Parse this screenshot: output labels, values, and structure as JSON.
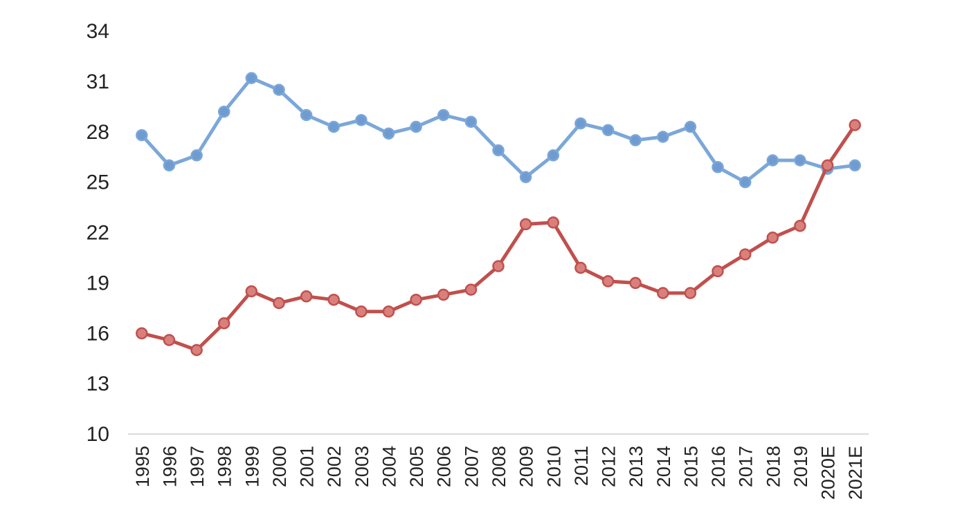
{
  "chart_data": {
    "type": "line",
    "categories": [
      "1995",
      "1996",
      "1997",
      "1998",
      "1999",
      "2000",
      "2001",
      "2002",
      "2003",
      "2004",
      "2005",
      "2006",
      "2007",
      "2008",
      "2009",
      "2010",
      "2011",
      "2012",
      "2013",
      "2014",
      "2015",
      "2016",
      "2017",
      "2018",
      "2019",
      "2020E",
      "2021E"
    ],
    "series": [
      {
        "color": "#7ba7d9",
        "marker_color": "#6f9bd0",
        "values": [
          27.8,
          26.0,
          26.6,
          29.2,
          31.2,
          30.5,
          29.0,
          28.3,
          28.7,
          27.9,
          28.3,
          29.0,
          28.6,
          26.9,
          25.3,
          26.6,
          28.5,
          28.1,
          27.5,
          27.7,
          28.3,
          25.9,
          25.0,
          26.3,
          26.3,
          25.8,
          26.0
        ]
      },
      {
        "color": "#c0504d",
        "marker_color": "#d9807d",
        "values": [
          16.0,
          15.6,
          15.0,
          16.6,
          18.5,
          17.8,
          18.2,
          18.0,
          17.3,
          17.3,
          18.0,
          18.3,
          18.6,
          20.0,
          22.5,
          22.6,
          19.9,
          19.1,
          19.0,
          18.4,
          18.4,
          19.7,
          20.7,
          21.7,
          22.4,
          26.0,
          28.4
        ]
      }
    ],
    "yticks": [
      "10",
      "13",
      "16",
      "19",
      "22",
      "25",
      "28",
      "31",
      "34"
    ],
    "ylim": [
      10,
      34
    ],
    "grid": false,
    "legend": "none"
  }
}
